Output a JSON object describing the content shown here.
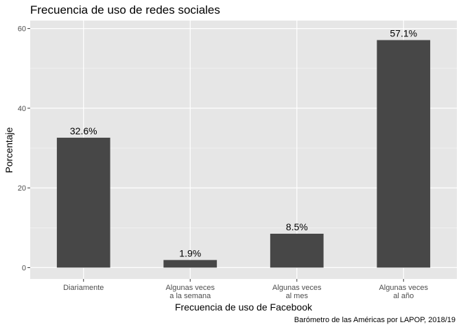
{
  "chart_data": {
    "type": "bar",
    "title": "Frecuencia de uso de redes sociales",
    "xlabel": "Frecuencia de uso de Facebook",
    "ylabel": "Porcentaje",
    "caption": "Barómetro de las Américas por LAPOP, 2018/19",
    "categories": [
      [
        "Diariamente"
      ],
      [
        "Algunas veces",
        "a la semana"
      ],
      [
        "Algunas veces",
        "al mes"
      ],
      [
        "Algunas veces",
        "al año"
      ]
    ],
    "values": [
      32.6,
      1.9,
      8.5,
      57.1
    ],
    "data_labels": [
      "32.6%",
      "1.9%",
      "8.5%",
      "57.1%"
    ],
    "yticks": [
      0,
      20,
      40,
      60
    ],
    "ylim": [
      -2.855,
      62.0
    ],
    "grid": true,
    "colors": {
      "bar": "#474747",
      "panel": "#e6e6e6",
      "grid_major": "#ffffff",
      "tick": "#4d4d4d"
    }
  }
}
